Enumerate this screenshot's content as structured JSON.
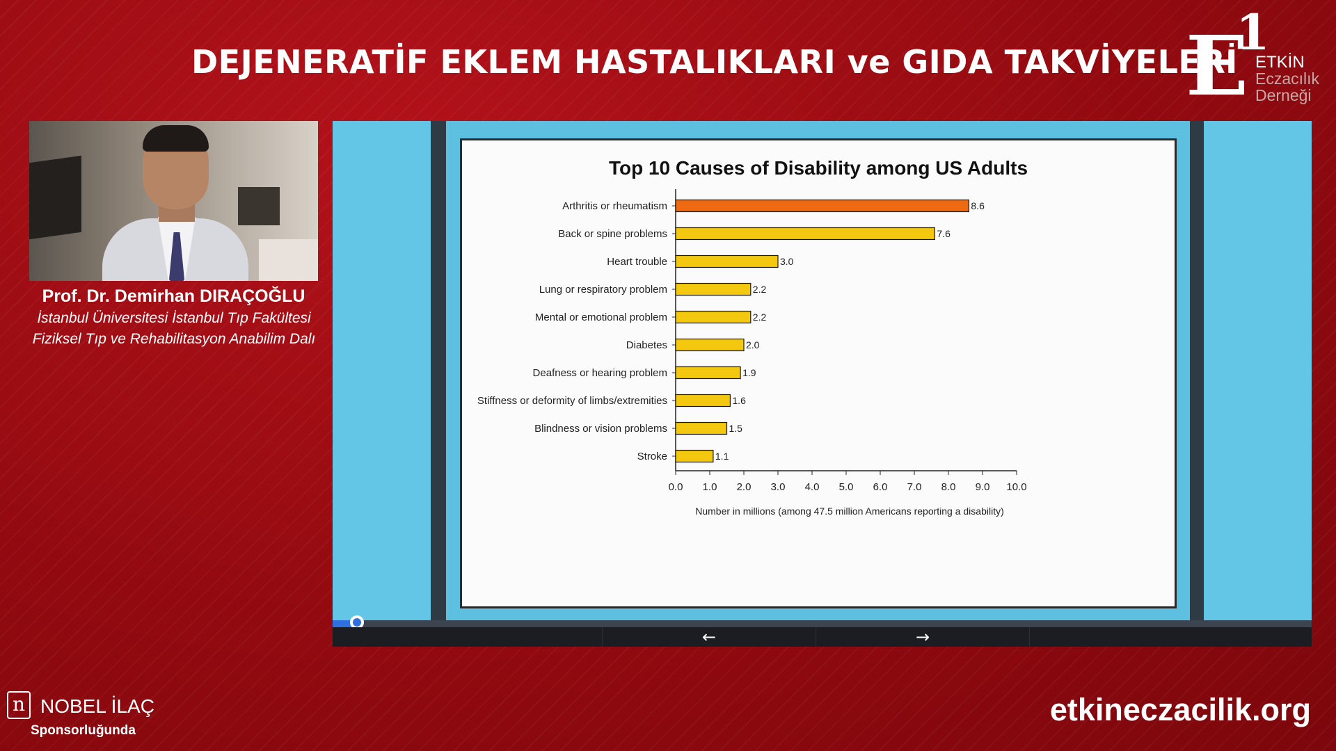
{
  "header": {
    "title": "DEJENERATİF EKLEM HASTALIKLARI ve GIDA TAKVİYELERİ"
  },
  "logo": {
    "mark_letter": "E",
    "mark_number": "1",
    "line1": "ETKİN",
    "line2": "Eczacılık",
    "line3": "Derneği"
  },
  "speaker": {
    "name": "Prof. Dr. Demirhan DIRAÇOĞLU",
    "affiliation_line1": "İstanbul Üniversitesi İstanbul Tıp Fakültesi",
    "affiliation_line2": "Fiziksel Tıp ve Rehabilitasyon Anabilim Dalı"
  },
  "viewer": {
    "progress_fraction": 0.025,
    "prev_icon": "arrow-left-icon",
    "next_icon": "arrow-right-icon",
    "prev_glyph": "←",
    "next_glyph": "→"
  },
  "chart_data": {
    "type": "bar",
    "orientation": "horizontal",
    "title": "Top 10 Causes of Disability among US Adults",
    "xlabel": "Number in millions (among 47.5 million Americans reporting a disability)",
    "ylabel": "",
    "xlim": [
      0,
      10
    ],
    "xticks": [
      "0.0",
      "1.0",
      "2.0",
      "3.0",
      "4.0",
      "5.0",
      "6.0",
      "7.0",
      "8.0",
      "9.0",
      "10.0"
    ],
    "categories": [
      "Arthritis or rheumatism",
      "Back or spine problems",
      "Heart trouble",
      "Lung or respiratory problem",
      "Mental or emotional problem",
      "Diabetes",
      "Deafness or hearing problem",
      "Stiffness or deformity of limbs/extremities",
      "Blindness or vision problems",
      "Stroke"
    ],
    "values": [
      8.6,
      7.6,
      3.0,
      2.2,
      2.2,
      2.0,
      1.9,
      1.6,
      1.5,
      1.1
    ],
    "value_labels": [
      "8.6",
      "7.6",
      "3.0",
      "2.2",
      "2.2",
      "2.0",
      "1.9",
      "1.6",
      "1.5",
      "1.1"
    ],
    "colors": {
      "highlight": "#ee6a12",
      "default": "#f3c80f",
      "outline": "#1a1a1a"
    },
    "highlight_index": 0,
    "grid": false,
    "legend": "none"
  },
  "footer": {
    "sponsor_mark": "n",
    "sponsor_name": "NOBEL İLAÇ",
    "sponsor_sub": "Sponsorluğunda",
    "website": "etkineczacilik.org"
  },
  "colors": {
    "background": "#9c0a10",
    "slide_frame": "#63c6e7",
    "progress": "#2f6fe0"
  }
}
